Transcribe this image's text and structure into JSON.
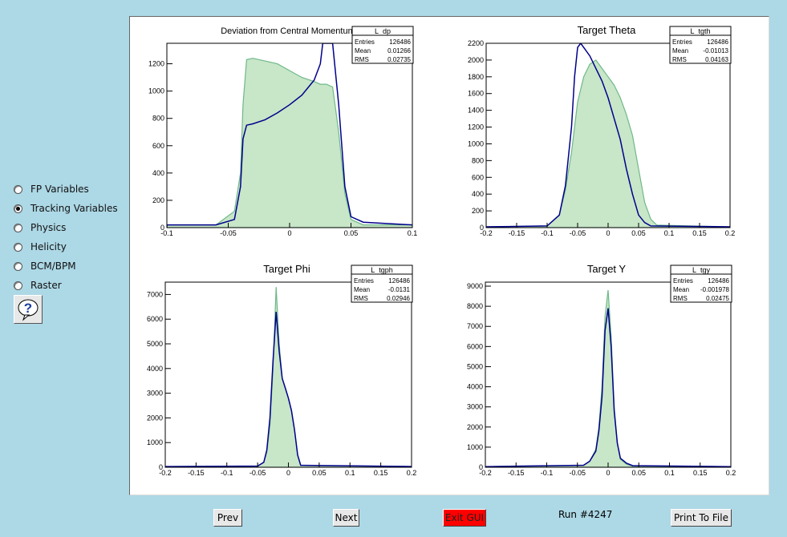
{
  "sidebar": {
    "options": [
      {
        "label": "FP Variables",
        "selected": false
      },
      {
        "label": "Tracking Variables",
        "selected": true
      },
      {
        "label": "Physics",
        "selected": false
      },
      {
        "label": "Helicity",
        "selected": false
      },
      {
        "label": "BCM/BPM",
        "selected": false
      },
      {
        "label": "Raster",
        "selected": false
      }
    ],
    "help_icon": "question-icon"
  },
  "footer": {
    "prev_label": "Prev",
    "next_label": "Next",
    "exit_label": "Exit GUI",
    "run_label": "Run #4247",
    "print_label": "Print To File",
    "exit_color": "#ff0000"
  },
  "colors": {
    "background": "#add8e6",
    "hist_fill": "#c8e6c8",
    "hist_green_line": "#6fb889",
    "hist_blue_line": "#00008b"
  },
  "chart_data": [
    {
      "type": "histogram",
      "title": "Deviation from Central Momentum",
      "xlim": [
        -0.1,
        0.1
      ],
      "ylim": [
        0,
        1350
      ],
      "xticks": [
        -0.1,
        -0.05,
        0,
        0.05,
        0.1
      ],
      "xtick_labels": [
        "-0.1",
        "-0.05",
        "0",
        "0.05",
        "0.1"
      ],
      "yticks": [
        0,
        200,
        400,
        600,
        800,
        1000,
        1200
      ],
      "ytick_labels": [
        "0",
        "200",
        "400",
        "600",
        "800",
        "1000",
        "1200"
      ],
      "stats": {
        "name": "L_dp",
        "rows": [
          [
            "Entries",
            "126486"
          ],
          [
            "Mean",
            "0.01266"
          ],
          [
            "RMS",
            "0.02735"
          ]
        ]
      },
      "series": [
        {
          "style": "filled-green",
          "x": [
            -0.1,
            -0.06,
            -0.045,
            -0.04,
            -0.038,
            -0.035,
            -0.03,
            -0.02,
            -0.01,
            0,
            0.01,
            0.02,
            0.025,
            0.03,
            0.035,
            0.04,
            0.045,
            0.05,
            0.06,
            0.1
          ],
          "y": [
            20,
            20,
            120,
            400,
            900,
            1230,
            1240,
            1220,
            1200,
            1150,
            1100,
            1070,
            1050,
            1050,
            1030,
            700,
            250,
            60,
            20,
            20
          ]
        },
        {
          "style": "line-blue",
          "x": [
            -0.1,
            -0.06,
            -0.045,
            -0.04,
            -0.038,
            -0.035,
            -0.03,
            -0.02,
            -0.01,
            0,
            0.01,
            0.02,
            0.025,
            0.027,
            0.03,
            0.035,
            0.04,
            0.045,
            0.05,
            0.06,
            0.1
          ],
          "y": [
            20,
            20,
            60,
            300,
            650,
            750,
            760,
            790,
            840,
            900,
            970,
            1080,
            1200,
            1350,
            1350,
            1350,
            900,
            300,
            80,
            40,
            20
          ]
        }
      ]
    },
    {
      "type": "histogram",
      "title": "Target Theta",
      "xlim": [
        -0.2,
        0.2
      ],
      "ylim": [
        0,
        2200
      ],
      "xticks": [
        -0.2,
        -0.15,
        -0.1,
        -0.05,
        0,
        0.05,
        0.1,
        0.15,
        0.2
      ],
      "xtick_labels": [
        "-0.2",
        "-0.15",
        "-0.1",
        "-0.05",
        "0",
        "0.05",
        "0.1",
        "0.15",
        "0.2"
      ],
      "yticks": [
        0,
        200,
        400,
        600,
        800,
        1000,
        1200,
        1400,
        1600,
        1800,
        2000,
        2200
      ],
      "ytick_labels": [
        "0",
        "200",
        "400",
        "600",
        "800",
        "1000",
        "1200",
        "1400",
        "1600",
        "1800",
        "2000",
        "2200"
      ],
      "stats": {
        "name": "L_tgth",
        "rows": [
          [
            "Entries",
            "126486"
          ],
          [
            "Mean",
            "-0.01013"
          ],
          [
            "RMS",
            "0.04163"
          ]
        ]
      },
      "series": [
        {
          "style": "filled-green",
          "x": [
            -0.2,
            -0.1,
            -0.08,
            -0.07,
            -0.06,
            -0.05,
            -0.04,
            -0.03,
            -0.02,
            -0.01,
            0,
            0.01,
            0.02,
            0.03,
            0.04,
            0.05,
            0.06,
            0.07,
            0.08,
            0.2
          ],
          "y": [
            10,
            20,
            150,
            450,
            900,
            1500,
            1800,
            1950,
            2000,
            1900,
            1800,
            1700,
            1550,
            1350,
            1100,
            700,
            300,
            100,
            30,
            10
          ]
        },
        {
          "style": "line-blue",
          "x": [
            -0.2,
            -0.1,
            -0.08,
            -0.07,
            -0.06,
            -0.055,
            -0.05,
            -0.045,
            -0.04,
            -0.03,
            -0.02,
            -0.01,
            0,
            0.01,
            0.02,
            0.03,
            0.04,
            0.05,
            0.06,
            0.07,
            0.2
          ],
          "y": [
            10,
            20,
            150,
            500,
            1200,
            1800,
            2150,
            2200,
            2150,
            2050,
            1900,
            1750,
            1550,
            1300,
            1050,
            700,
            400,
            150,
            60,
            20,
            10
          ]
        }
      ]
    },
    {
      "type": "histogram",
      "title": "Target Phi",
      "xlim": [
        -0.2,
        0.2
      ],
      "ylim": [
        0,
        7500
      ],
      "xticks": [
        -0.2,
        -0.15,
        -0.1,
        -0.05,
        0,
        0.05,
        0.1,
        0.15,
        0.2
      ],
      "xtick_labels": [
        "-0.2",
        "-0.15",
        "-0.1",
        "-0.05",
        "0",
        "0.05",
        "0.1",
        "0.15",
        "0.2"
      ],
      "yticks": [
        0,
        1000,
        2000,
        3000,
        4000,
        5000,
        6000,
        7000
      ],
      "ytick_labels": [
        "0",
        "1000",
        "2000",
        "3000",
        "4000",
        "5000",
        "6000",
        "7000"
      ],
      "stats": {
        "name": "L_tgph",
        "rows": [
          [
            "Entries",
            "126486"
          ],
          [
            "Mean",
            "-0.0131"
          ],
          [
            "RMS",
            "0.02946"
          ]
        ]
      },
      "series": [
        {
          "style": "filled-green",
          "x": [
            -0.2,
            -0.05,
            -0.04,
            -0.035,
            -0.03,
            -0.025,
            -0.02,
            -0.015,
            -0.01,
            -0.005,
            0,
            0.005,
            0.01,
            0.015,
            0.02,
            0.2
          ],
          "y": [
            30,
            50,
            200,
            600,
            1700,
            4000,
            7300,
            5000,
            3600,
            3200,
            2800,
            2300,
            1500,
            500,
            80,
            30
          ]
        },
        {
          "style": "line-blue",
          "x": [
            -0.2,
            -0.05,
            -0.04,
            -0.035,
            -0.03,
            -0.025,
            -0.02,
            -0.015,
            -0.01,
            -0.005,
            0,
            0.005,
            0.01,
            0.015,
            0.02,
            0.2
          ],
          "y": [
            30,
            50,
            200,
            700,
            2000,
            4300,
            6300,
            4700,
            3600,
            3200,
            2800,
            2300,
            1500,
            500,
            80,
            30
          ]
        }
      ]
    },
    {
      "type": "histogram",
      "title": "Target Y",
      "xlim": [
        -0.2,
        0.2
      ],
      "ylim": [
        0,
        9200
      ],
      "xticks": [
        -0.2,
        -0.15,
        -0.1,
        -0.05,
        0,
        0.05,
        0.1,
        0.15,
        0.2
      ],
      "xtick_labels": [
        "-0.2",
        "-0.15",
        "-0.1",
        "-0.05",
        "0",
        "0.05",
        "0.1",
        "0.15",
        "0.2"
      ],
      "yticks": [
        0,
        1000,
        2000,
        3000,
        4000,
        5000,
        6000,
        7000,
        8000,
        9000
      ],
      "ytick_labels": [
        "0",
        "1000",
        "2000",
        "3000",
        "4000",
        "5000",
        "6000",
        "7000",
        "8000",
        "9000"
      ],
      "stats": {
        "name": "L_tgy",
        "rows": [
          [
            "Entries",
            "126486"
          ],
          [
            "Mean",
            "-0.001978"
          ],
          [
            "RMS",
            "0.02475"
          ]
        ]
      },
      "series": [
        {
          "style": "filled-green",
          "x": [
            -0.2,
            -0.04,
            -0.03,
            -0.02,
            -0.015,
            -0.01,
            -0.005,
            0,
            0.005,
            0.01,
            0.015,
            0.02,
            0.03,
            0.04,
            0.2
          ],
          "y": [
            30,
            100,
            300,
            900,
            2000,
            4000,
            7500,
            8800,
            6500,
            3000,
            1200,
            400,
            150,
            60,
            30
          ]
        },
        {
          "style": "line-blue",
          "x": [
            -0.2,
            -0.04,
            -0.03,
            -0.02,
            -0.015,
            -0.01,
            -0.005,
            0,
            0.005,
            0.01,
            0.015,
            0.02,
            0.03,
            0.04,
            0.2
          ],
          "y": [
            30,
            100,
            300,
            800,
            1800,
            3500,
            6800,
            7900,
            6000,
            2800,
            1200,
            450,
            200,
            80,
            30
          ]
        }
      ]
    }
  ]
}
